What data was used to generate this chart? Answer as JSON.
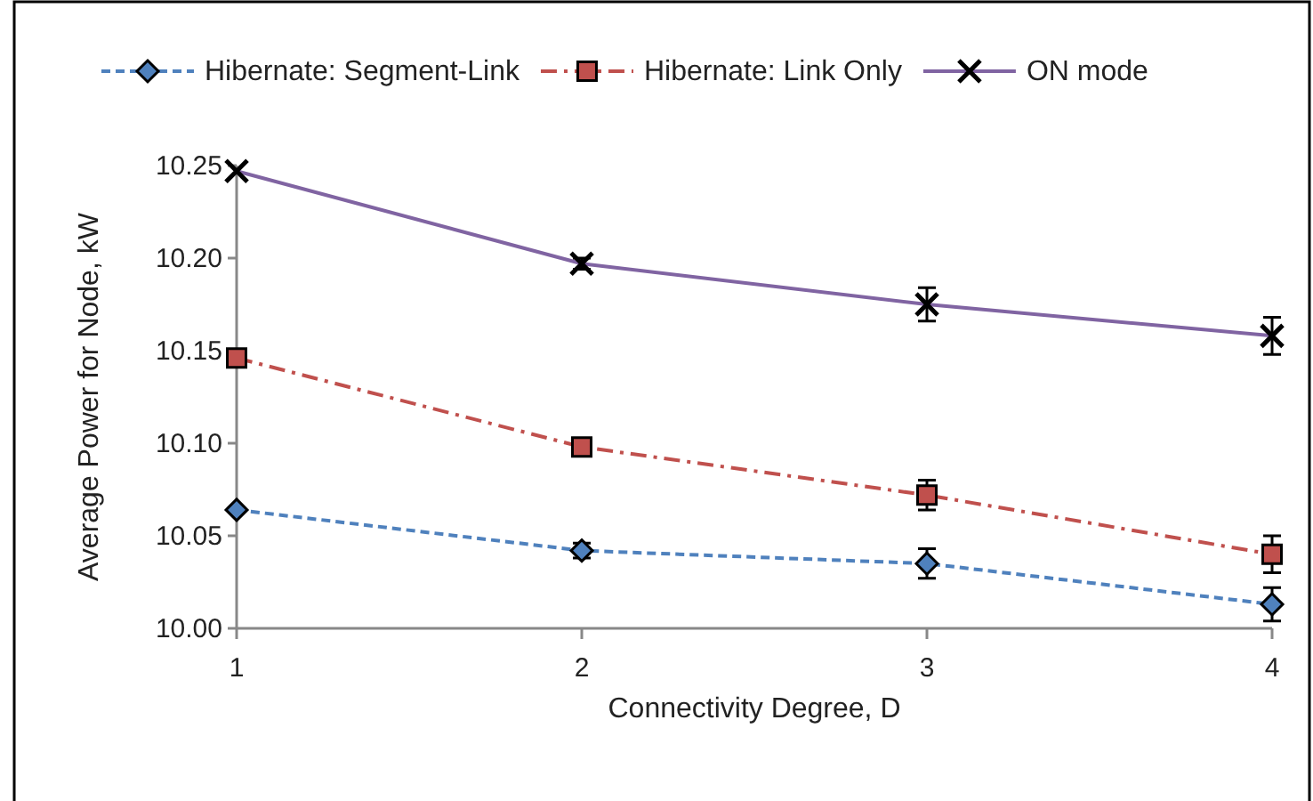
{
  "chart_data": {
    "type": "line",
    "xlabel": "Connectivity Degree, D",
    "ylabel": "Average Power for Node, kW",
    "x": [
      1,
      2,
      3,
      4
    ],
    "xlim": [
      1,
      4
    ],
    "xticks": [
      1,
      2,
      3,
      4
    ],
    "ylim": [
      10,
      10.25
    ],
    "yticks": [
      {
        "value": 10,
        "label": "10.00"
      },
      {
        "value": 10.05,
        "label": "10.05"
      },
      {
        "value": 10.1,
        "label": "10.10"
      },
      {
        "value": 10.15,
        "label": "10.15"
      },
      {
        "value": 10.2,
        "label": "10.20"
      },
      {
        "value": 10.25,
        "label": "10.25"
      }
    ],
    "legend": "top",
    "grid": false,
    "series": [
      {
        "name": "Hibernate: Segment-Link",
        "color": "#4f81bd",
        "marker": "diamond",
        "line_style": "dashed",
        "values": [
          10.064,
          10.042,
          10.035,
          10.013
        ],
        "errors": [
          null,
          0.004,
          0.008,
          0.009
        ]
      },
      {
        "name": "Hibernate: Link Only",
        "color": "#c0504d",
        "marker": "square",
        "line_style": "dashdot",
        "values": [
          10.146,
          10.098,
          10.072,
          10.04
        ],
        "errors": [
          null,
          null,
          0.008,
          0.01
        ]
      },
      {
        "name": "ON mode",
        "color": "#8064a2",
        "marker": "cross",
        "line_style": "solid",
        "values": [
          10.247,
          10.197,
          10.175,
          10.158
        ],
        "errors": [
          null,
          0.003,
          0.009,
          0.01
        ]
      }
    ]
  }
}
